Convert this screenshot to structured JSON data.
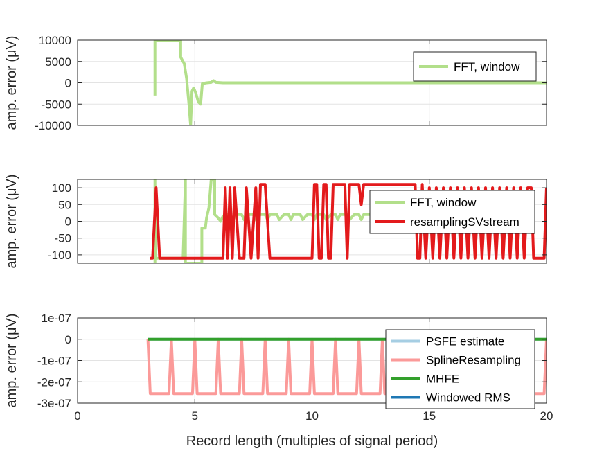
{
  "chart_data": [
    {
      "type": "line",
      "ylabel": "amp. error (μV)",
      "xlim": [
        0,
        20
      ],
      "ylim": [
        -10000,
        10000
      ],
      "yticks": [
        -10000,
        -5000,
        0,
        5000,
        10000
      ],
      "ytick_labels": [
        "-10000",
        "-5000",
        "0",
        "5000",
        "10000"
      ],
      "xticks": [
        0,
        5,
        10,
        15,
        20
      ],
      "grid": true,
      "legend_location": "top-right",
      "series": [
        {
          "name": "FFT, window",
          "color": "#b2df8a",
          "points": [
            [
              3.3,
              -3000
            ],
            [
              3.3,
              10000
            ],
            [
              4.4,
              10000
            ],
            [
              4.4,
              6000
            ],
            [
              4.55,
              4500
            ],
            [
              4.65,
              1000
            ],
            [
              4.75,
              -5000
            ],
            [
              4.82,
              -10000
            ],
            [
              4.88,
              -2000
            ],
            [
              4.95,
              -1200
            ],
            [
              5.05,
              -2500
            ],
            [
              5.15,
              -4500
            ],
            [
              5.25,
              -5000
            ],
            [
              5.32,
              -200
            ],
            [
              5.5,
              0
            ],
            [
              5.7,
              100
            ],
            [
              5.8,
              500
            ],
            [
              5.9,
              100
            ],
            [
              6.2,
              0
            ],
            [
              20,
              0
            ]
          ]
        }
      ]
    },
    {
      "type": "line",
      "ylabel": "amp. error (μV)",
      "xlim": [
        0,
        20
      ],
      "ylim": [
        -125,
        125
      ],
      "yticks": [
        -100,
        -50,
        0,
        50,
        100
      ],
      "ytick_labels": [
        "-100",
        "-50",
        "0",
        "50",
        "100"
      ],
      "xticks": [
        0,
        5,
        10,
        15,
        20
      ],
      "grid": true,
      "legend_location": "top-right",
      "series": [
        {
          "name": "FFT, window",
          "color": "#b2df8a",
          "points": [
            [
              3.3,
              -125
            ],
            [
              3.3,
              125
            ],
            [
              3.32,
              -110
            ],
            [
              4.5,
              -110
            ],
            [
              4.6,
              125
            ],
            [
              4.6,
              -125
            ],
            [
              5.3,
              -125
            ],
            [
              5.3,
              -20
            ],
            [
              5.45,
              -20
            ],
            [
              5.5,
              10
            ],
            [
              5.6,
              40
            ],
            [
              5.7,
              125
            ],
            [
              5.8,
              125
            ],
            [
              5.85,
              125
            ],
            [
              5.85,
              20
            ],
            [
              6.0,
              10
            ],
            [
              6.1,
              0
            ],
            [
              6.2,
              15
            ],
            [
              6.3,
              20
            ],
            [
              6.5,
              20
            ],
            [
              6.6,
              5
            ],
            [
              6.8,
              20
            ],
            [
              7.0,
              20
            ],
            [
              7.1,
              5
            ],
            [
              7.2,
              20
            ],
            [
              7.5,
              20
            ],
            [
              7.6,
              5
            ],
            [
              7.8,
              20
            ],
            [
              8.0,
              20
            ],
            [
              8.1,
              5
            ],
            [
              8.2,
              20
            ],
            [
              8.5,
              20
            ],
            [
              8.6,
              5
            ],
            [
              8.8,
              20
            ],
            [
              9.0,
              20
            ],
            [
              9.1,
              5
            ],
            [
              9.2,
              20
            ],
            [
              9.5,
              20
            ],
            [
              9.6,
              5
            ],
            [
              9.8,
              20
            ],
            [
              10.0,
              20
            ],
            [
              10.1,
              5
            ],
            [
              10.2,
              20
            ],
            [
              10.5,
              20
            ],
            [
              10.6,
              5
            ],
            [
              10.8,
              20
            ],
            [
              11.0,
              20
            ],
            [
              11.1,
              5
            ],
            [
              11.2,
              20
            ],
            [
              11.5,
              20
            ],
            [
              11.6,
              5
            ],
            [
              11.8,
              20
            ],
            [
              12.0,
              20
            ],
            [
              12.1,
              5
            ],
            [
              12.2,
              20
            ],
            [
              12.5,
              20
            ],
            [
              12.6,
              5
            ],
            [
              12.8,
              20
            ],
            [
              13.0,
              20
            ],
            [
              13.1,
              5
            ],
            [
              13.2,
              20
            ],
            [
              13.3,
              20
            ]
          ]
        },
        {
          "name": "resamplingSVstream",
          "color": "#e31a1c",
          "points": [
            [
              3.1,
              -110
            ],
            [
              3.2,
              -110
            ],
            [
              3.35,
              100
            ],
            [
              3.5,
              -110
            ],
            [
              6.2,
              -110
            ],
            [
              6.3,
              100
            ],
            [
              6.4,
              -110
            ],
            [
              6.5,
              100
            ],
            [
              6.6,
              -110
            ],
            [
              6.7,
              100
            ],
            [
              6.9,
              -110
            ],
            [
              7.1,
              -110
            ],
            [
              7.2,
              100
            ],
            [
              7.4,
              -110
            ],
            [
              7.6,
              100
            ],
            [
              7.7,
              -110
            ],
            [
              7.8,
              110
            ],
            [
              8.0,
              110
            ],
            [
              8.2,
              -110
            ],
            [
              10.0,
              -110
            ],
            [
              10.1,
              110
            ],
            [
              10.2,
              110
            ],
            [
              10.3,
              -110
            ],
            [
              10.4,
              -110
            ],
            [
              10.5,
              110
            ],
            [
              10.6,
              110
            ],
            [
              10.7,
              -110
            ],
            [
              10.8,
              -110
            ],
            [
              10.9,
              110
            ],
            [
              11.4,
              110
            ],
            [
              11.5,
              -110
            ],
            [
              11.6,
              110
            ],
            [
              12.0,
              110
            ],
            [
              12.1,
              50
            ],
            [
              12.2,
              110
            ],
            [
              13.2,
              110
            ],
            [
              13.3,
              110
            ],
            [
              14.4,
              110
            ],
            [
              14.5,
              -110
            ],
            [
              14.6,
              -110
            ],
            [
              14.7,
              110
            ],
            [
              14.85,
              -110
            ],
            [
              15.0,
              100
            ],
            [
              15.15,
              -110
            ],
            [
              15.3,
              100
            ],
            [
              15.45,
              -110
            ],
            [
              15.6,
              100
            ],
            [
              15.75,
              -110
            ],
            [
              15.9,
              100
            ],
            [
              16.05,
              -110
            ],
            [
              16.2,
              100
            ],
            [
              16.35,
              -110
            ],
            [
              16.5,
              100
            ],
            [
              16.65,
              -110
            ],
            [
              16.8,
              100
            ],
            [
              16.95,
              -110
            ],
            [
              17.1,
              100
            ],
            [
              17.25,
              -110
            ],
            [
              17.4,
              100
            ],
            [
              17.55,
              -110
            ],
            [
              17.7,
              100
            ],
            [
              17.85,
              -110
            ],
            [
              18.0,
              100
            ],
            [
              18.15,
              -110
            ],
            [
              18.3,
              100
            ],
            [
              18.45,
              -110
            ],
            [
              18.6,
              100
            ],
            [
              18.75,
              -110
            ],
            [
              18.9,
              100
            ],
            [
              19.05,
              -110
            ],
            [
              19.2,
              100
            ],
            [
              19.35,
              100
            ],
            [
              19.45,
              -110
            ],
            [
              19.9,
              -110
            ],
            [
              20.0,
              100
            ]
          ]
        }
      ]
    },
    {
      "type": "line",
      "ylabel": "amp. error (μV)",
      "xlabel": "Record length (multiples of signal period)",
      "xlim": [
        0,
        20
      ],
      "ylim": [
        -3e-07,
        1e-07
      ],
      "yticks": [
        -3e-07,
        -2e-07,
        -1e-07,
        0,
        1e-07
      ],
      "ytick_labels": [
        "-3e-07",
        "-2e-07",
        "-1e-07",
        "0",
        "1e-07"
      ],
      "xticks": [
        0,
        5,
        10,
        15,
        20
      ],
      "xtick_labels": [
        "0",
        "5",
        "10",
        "15",
        "20"
      ],
      "grid": true,
      "legend_location": "top-right",
      "series": [
        {
          "name": "PSFE estimate",
          "color": "#a6cee3",
          "points": [
            [
              3.0,
              0
            ],
            [
              20.0,
              0
            ]
          ]
        },
        {
          "name": "SplineResampling",
          "color": "#fb9a99",
          "points": [
            [
              3.0,
              0
            ],
            [
              3.1,
              -2.55e-07
            ],
            [
              3.9,
              -2.55e-07
            ],
            [
              4.0,
              0
            ],
            [
              4.1,
              -2.55e-07
            ],
            [
              4.9,
              -2.55e-07
            ],
            [
              5.0,
              0
            ],
            [
              5.1,
              -2.55e-07
            ],
            [
              5.9,
              -2.55e-07
            ],
            [
              6.0,
              0
            ],
            [
              6.1,
              -2.55e-07
            ],
            [
              6.9,
              -2.55e-07
            ],
            [
              7.0,
              0
            ],
            [
              7.1,
              -2.55e-07
            ],
            [
              7.9,
              -2.55e-07
            ],
            [
              8.0,
              0
            ],
            [
              8.1,
              -2.55e-07
            ],
            [
              8.9,
              -2.55e-07
            ],
            [
              9.0,
              0
            ],
            [
              9.1,
              -2.55e-07
            ],
            [
              9.9,
              -2.55e-07
            ],
            [
              10.0,
              0
            ],
            [
              10.1,
              -2.55e-07
            ],
            [
              10.9,
              -2.55e-07
            ],
            [
              11.0,
              0
            ],
            [
              11.1,
              -2.55e-07
            ],
            [
              11.9,
              -2.55e-07
            ],
            [
              12.0,
              0
            ],
            [
              12.1,
              -2.55e-07
            ],
            [
              12.9,
              -2.55e-07
            ],
            [
              13.0,
              0
            ],
            [
              13.1,
              -2.55e-07
            ],
            [
              13.9,
              -2.55e-07
            ],
            [
              14.0,
              0
            ],
            [
              14.1,
              -2.55e-07
            ],
            [
              14.9,
              -2.55e-07
            ],
            [
              15.0,
              0
            ],
            [
              15.1,
              -2.55e-07
            ],
            [
              15.9,
              -2.55e-07
            ],
            [
              16.0,
              0
            ],
            [
              16.1,
              -2.55e-07
            ],
            [
              16.9,
              -2.55e-07
            ],
            [
              17.0,
              0
            ],
            [
              17.1,
              -2.55e-07
            ],
            [
              17.9,
              -2.55e-07
            ],
            [
              18.0,
              0
            ],
            [
              18.1,
              -2.55e-07
            ],
            [
              18.9,
              -2.55e-07
            ],
            [
              19.0,
              0
            ],
            [
              19.1,
              -2.55e-07
            ],
            [
              19.9,
              -2.55e-07
            ],
            [
              20.0,
              0
            ]
          ]
        },
        {
          "name": "MHFE",
          "color": "#33a02c",
          "points": [
            [
              3.0,
              0
            ],
            [
              20.0,
              0
            ]
          ]
        },
        {
          "name": "Windowed RMS",
          "color": "#1f78b4",
          "points": []
        }
      ]
    }
  ]
}
